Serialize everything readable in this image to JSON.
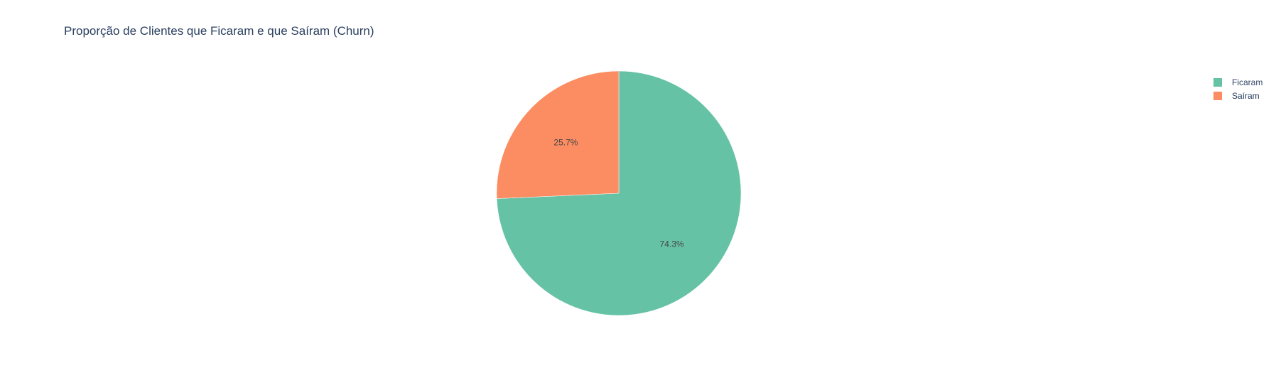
{
  "chart_data": {
    "type": "pie",
    "title": "Proporção de Clientes que Ficaram e que Saíram (Churn)",
    "slices": [
      {
        "label": "Ficaram",
        "percent": 74.3,
        "percent_text": "74.3%",
        "color": "#66c2a5"
      },
      {
        "label": "Saíram",
        "percent": 25.7,
        "percent_text": "25.7%",
        "color": "#fc8d62"
      }
    ],
    "legend": {
      "position": "top-right",
      "entries": [
        "Ficaram",
        "Saíram"
      ]
    },
    "direction": "clockwise",
    "start_angle": "top"
  }
}
